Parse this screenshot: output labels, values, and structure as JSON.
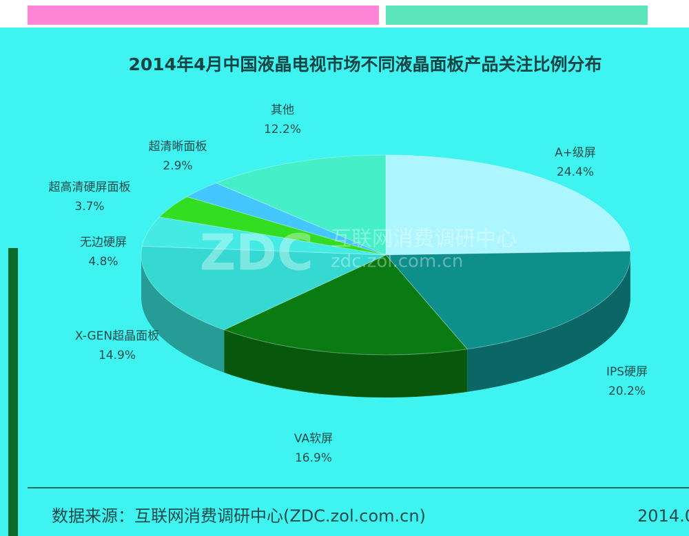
{
  "chart_data": {
    "type": "pie",
    "title": "2014年4月中国液晶电视市场不同液晶面板产品关注比例分布",
    "categories": [
      "A+级屏",
      "IPS硬屏",
      "VA软屏",
      "X-GEN超晶面板",
      "无边硬屏",
      "超高清硬屏面板",
      "超清晰面板",
      "其他"
    ],
    "values": [
      24.4,
      20.2,
      16.9,
      14.9,
      4.8,
      3.7,
      2.9,
      12.2
    ],
    "value_labels": [
      "24.4%",
      "20.2%",
      "16.9%",
      "14.9%",
      "4.8%",
      "3.7%",
      "2.9%",
      "12.2%"
    ],
    "colors": [
      "#aef6ff",
      "#0e8f8c",
      "#0a7a12",
      "#36d9d2",
      "#44ebe4",
      "#33dd22",
      "#44c6ff",
      "#45f0c8"
    ],
    "watermark": [
      "ZDC",
      "互联网消费调研中心",
      "zdc.zol.com.cn"
    ],
    "source": "数据来源：互联网消费调研中心(ZDC.zol.com.cn)",
    "date": "2014.0"
  }
}
